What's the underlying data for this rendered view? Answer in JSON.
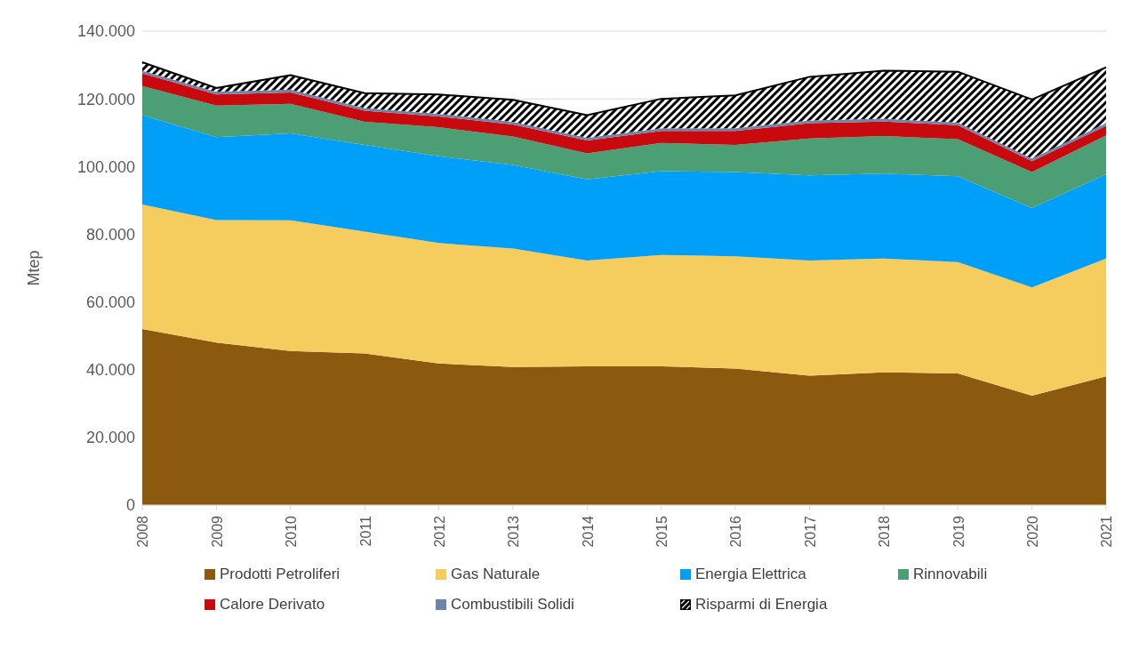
{
  "chart_data": {
    "type": "area",
    "stacked": true,
    "ylabel": "Mtep",
    "categories": [
      "2008",
      "2009",
      "2010",
      "2011",
      "2012",
      "2013",
      "2014",
      "2015",
      "2016",
      "2017",
      "2018",
      "2019",
      "2020",
      "2021"
    ],
    "series": [
      {
        "name": "Prodotti Petroliferi",
        "color": "#8b5a0f",
        "values": [
          52000,
          48000,
          45500,
          44800,
          41800,
          40800,
          41000,
          41000,
          40300,
          38200,
          39200,
          38900,
          32300,
          38000
        ]
      },
      {
        "name": "Gas Naturale",
        "color": "#f5cc5e",
        "values": [
          36800,
          36200,
          38600,
          36000,
          35600,
          35000,
          31200,
          32900,
          33200,
          34000,
          33600,
          32900,
          32000,
          34800
        ]
      },
      {
        "name": "Energia Elettrica",
        "color": "#00a0f8",
        "values": [
          26400,
          24500,
          25700,
          25600,
          25600,
          24700,
          24000,
          24700,
          24900,
          25200,
          25100,
          25300,
          23400,
          24900
        ]
      },
      {
        "name": "Rinnovabili",
        "color": "#4c9e74",
        "values": [
          8600,
          9300,
          8700,
          6800,
          8600,
          8400,
          7700,
          8400,
          8000,
          10900,
          11100,
          11000,
          10700,
          11500
        ]
      },
      {
        "name": "Calore Derivato",
        "color": "#c80a0f",
        "values": [
          3700,
          3300,
          3400,
          3300,
          3200,
          3500,
          3800,
          3500,
          4100,
          4500,
          4300,
          4100,
          3200,
          2800
        ]
      },
      {
        "name": "Combustibili Solidi",
        "color": "#6d85a8",
        "values": [
          800,
          800,
          800,
          800,
          800,
          800,
          800,
          800,
          800,
          800,
          800,
          800,
          800,
          800
        ]
      },
      {
        "name": "Risparmi di Energia",
        "color": "#000000",
        "values": [
          2500,
          1100,
          4300,
          4400,
          5700,
          6500,
          6700,
          8700,
          9700,
          12900,
          14200,
          15000,
          17400,
          16500
        ]
      }
    ],
    "ylim": [
      0,
      140000
    ],
    "yticks": [
      0,
      {
        "value": 20000,
        "label": "20.000"
      },
      {
        "value": 40000,
        "label": "40.000"
      },
      {
        "value": 60000,
        "label": "60.000"
      },
      {
        "value": 80000,
        "label": "80.000"
      },
      {
        "value": 100000,
        "label": "100.000"
      },
      {
        "value": 120000,
        "label": "120.000"
      },
      {
        "value": 140000,
        "label": "140.000"
      }
    ],
    "grid": "y",
    "legend": "bottom"
  }
}
